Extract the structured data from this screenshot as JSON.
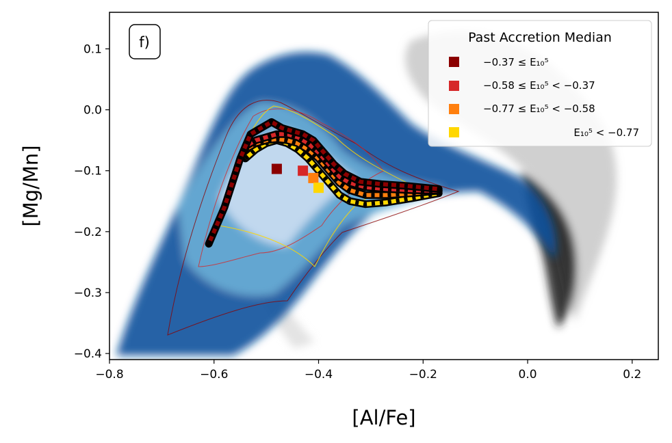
{
  "chart_data": {
    "type": "scatter",
    "title": "",
    "panel_label": "f)",
    "xlabel": "[Al/Fe]",
    "ylabel": "[Mg/Mn]",
    "xlim": [
      -0.8,
      0.25
    ],
    "ylim": [
      -0.41,
      0.16
    ],
    "xticks": [
      -0.8,
      -0.6,
      -0.4,
      -0.2,
      0.0,
      0.2
    ],
    "yticks": [
      -0.4,
      -0.3,
      -0.2,
      -0.1,
      0.0,
      0.1
    ],
    "xtick_labels": [
      "−0.8",
      "−0.6",
      "−0.4",
      "−0.2",
      "0.0",
      "0.2"
    ],
    "ytick_labels": [
      "−0.4",
      "−0.3",
      "−0.2",
      "−0.1",
      "0.0",
      "0.1"
    ],
    "legend": {
      "title": "Past Accretion Median",
      "placement": "top-right",
      "entries": [
        {
          "label": "−0.37 ≤ E₁₀⁵",
          "color": "#8b0000"
        },
        {
          "label": "−0.58 ≤ E₁₀⁵ < −0.37",
          "color": "#d62728"
        },
        {
          "label": "−0.77 ≤ E₁₀⁵ < −0.58",
          "color": "#ff7f0e"
        },
        {
          "label": "E₁₀⁵ < −0.77",
          "color": "#ffd700"
        }
      ]
    },
    "series": [
      {
        "name": "−0.37 ≤ E",
        "color": "#8b0000",
        "x": [
          -0.61,
          -0.58,
          -0.55,
          -0.53,
          -0.51,
          -0.49,
          -0.47,
          -0.45,
          -0.43,
          -0.41,
          -0.39,
          -0.37,
          -0.35,
          -0.32,
          -0.28,
          -0.23,
          -0.17
        ],
        "y": [
          -0.22,
          -0.16,
          -0.08,
          -0.04,
          -0.03,
          -0.02,
          -0.03,
          -0.035,
          -0.04,
          -0.05,
          -0.07,
          -0.09,
          -0.105,
          -0.118,
          -0.122,
          -0.125,
          -0.13
        ],
        "median_marker": [
          -0.48,
          -0.097
        ]
      },
      {
        "name": "−0.58 ≤ E < −0.37",
        "color": "#d62728",
        "x": [
          -0.54,
          -0.52,
          -0.5,
          -0.48,
          -0.46,
          -0.44,
          -0.42,
          -0.4,
          -0.38,
          -0.36,
          -0.34,
          -0.31,
          -0.27,
          -0.22,
          -0.17
        ],
        "y": [
          -0.06,
          -0.05,
          -0.045,
          -0.04,
          -0.04,
          -0.045,
          -0.055,
          -0.07,
          -0.09,
          -0.11,
          -0.12,
          -0.127,
          -0.13,
          -0.132,
          -0.133
        ],
        "median_marker": [
          -0.43,
          -0.1
        ]
      },
      {
        "name": "−0.77 ≤ E < −0.58",
        "color": "#ff7f0e",
        "x": [
          -0.54,
          -0.52,
          -0.5,
          -0.48,
          -0.46,
          -0.44,
          -0.42,
          -0.4,
          -0.38,
          -0.36,
          -0.34,
          -0.31,
          -0.27,
          -0.22,
          -0.17
        ],
        "y": [
          -0.065,
          -0.055,
          -0.05,
          -0.048,
          -0.05,
          -0.055,
          -0.065,
          -0.08,
          -0.1,
          -0.12,
          -0.132,
          -0.14,
          -0.14,
          -0.137,
          -0.133
        ],
        "median_marker": [
          -0.41,
          -0.112
        ]
      },
      {
        "name": "E < −0.77",
        "color": "#ffd700",
        "x": [
          -0.54,
          -0.52,
          -0.5,
          -0.48,
          -0.46,
          -0.44,
          -0.42,
          -0.4,
          -0.38,
          -0.36,
          -0.34,
          -0.31,
          -0.27,
          -0.22,
          -0.17
        ],
        "y": [
          -0.08,
          -0.065,
          -0.055,
          -0.05,
          -0.055,
          -0.065,
          -0.08,
          -0.1,
          -0.12,
          -0.14,
          -0.15,
          -0.155,
          -0.152,
          -0.145,
          -0.137
        ],
        "median_marker": [
          -0.4,
          -0.128
        ]
      }
    ]
  }
}
